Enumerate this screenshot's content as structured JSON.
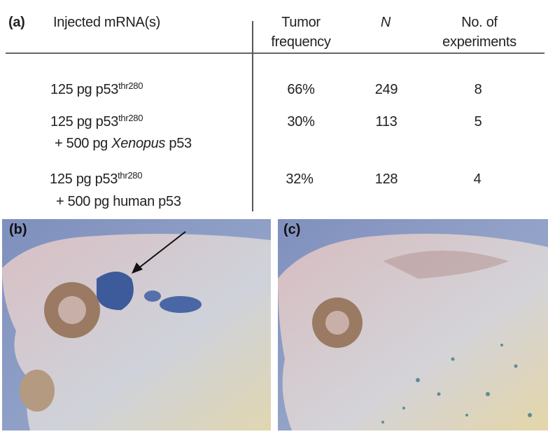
{
  "panel_a": {
    "label": "(a)",
    "headers": {
      "mrna": "Injected mRNA(s)",
      "tumor_line1": "Tumor",
      "tumor_line2": "frequency",
      "n": "N",
      "exp_line1": "No. of",
      "exp_line2": "experiments"
    },
    "rows": [
      {
        "line1": "125 pg p53",
        "sup": "thr280",
        "line2": "",
        "line2_italic": "",
        "line2_rest": "",
        "tumor": "66%",
        "n": "249",
        "experiments": "8"
      },
      {
        "line1": "125 pg p53",
        "sup": "thr280",
        "line2": "+ 500 pg ",
        "line2_italic": "Xenopus",
        "line2_rest": " p53",
        "tumor": "30%",
        "n": "113",
        "experiments": "5"
      },
      {
        "line1": "125 pg p53",
        "sup": "thr280",
        "line2": "+ 500 pg human p53",
        "line2_italic": "",
        "line2_rest": "",
        "tumor": "32%",
        "n": "128",
        "experiments": "4"
      }
    ]
  },
  "panel_b": {
    "label": "(b)"
  },
  "panel_c": {
    "label": "(c)"
  },
  "colors": {
    "background_blue": "#8a9cc4",
    "embryo": "#d9c2c4",
    "stain": "#3d5a9a",
    "eye": "#8a6a50"
  }
}
